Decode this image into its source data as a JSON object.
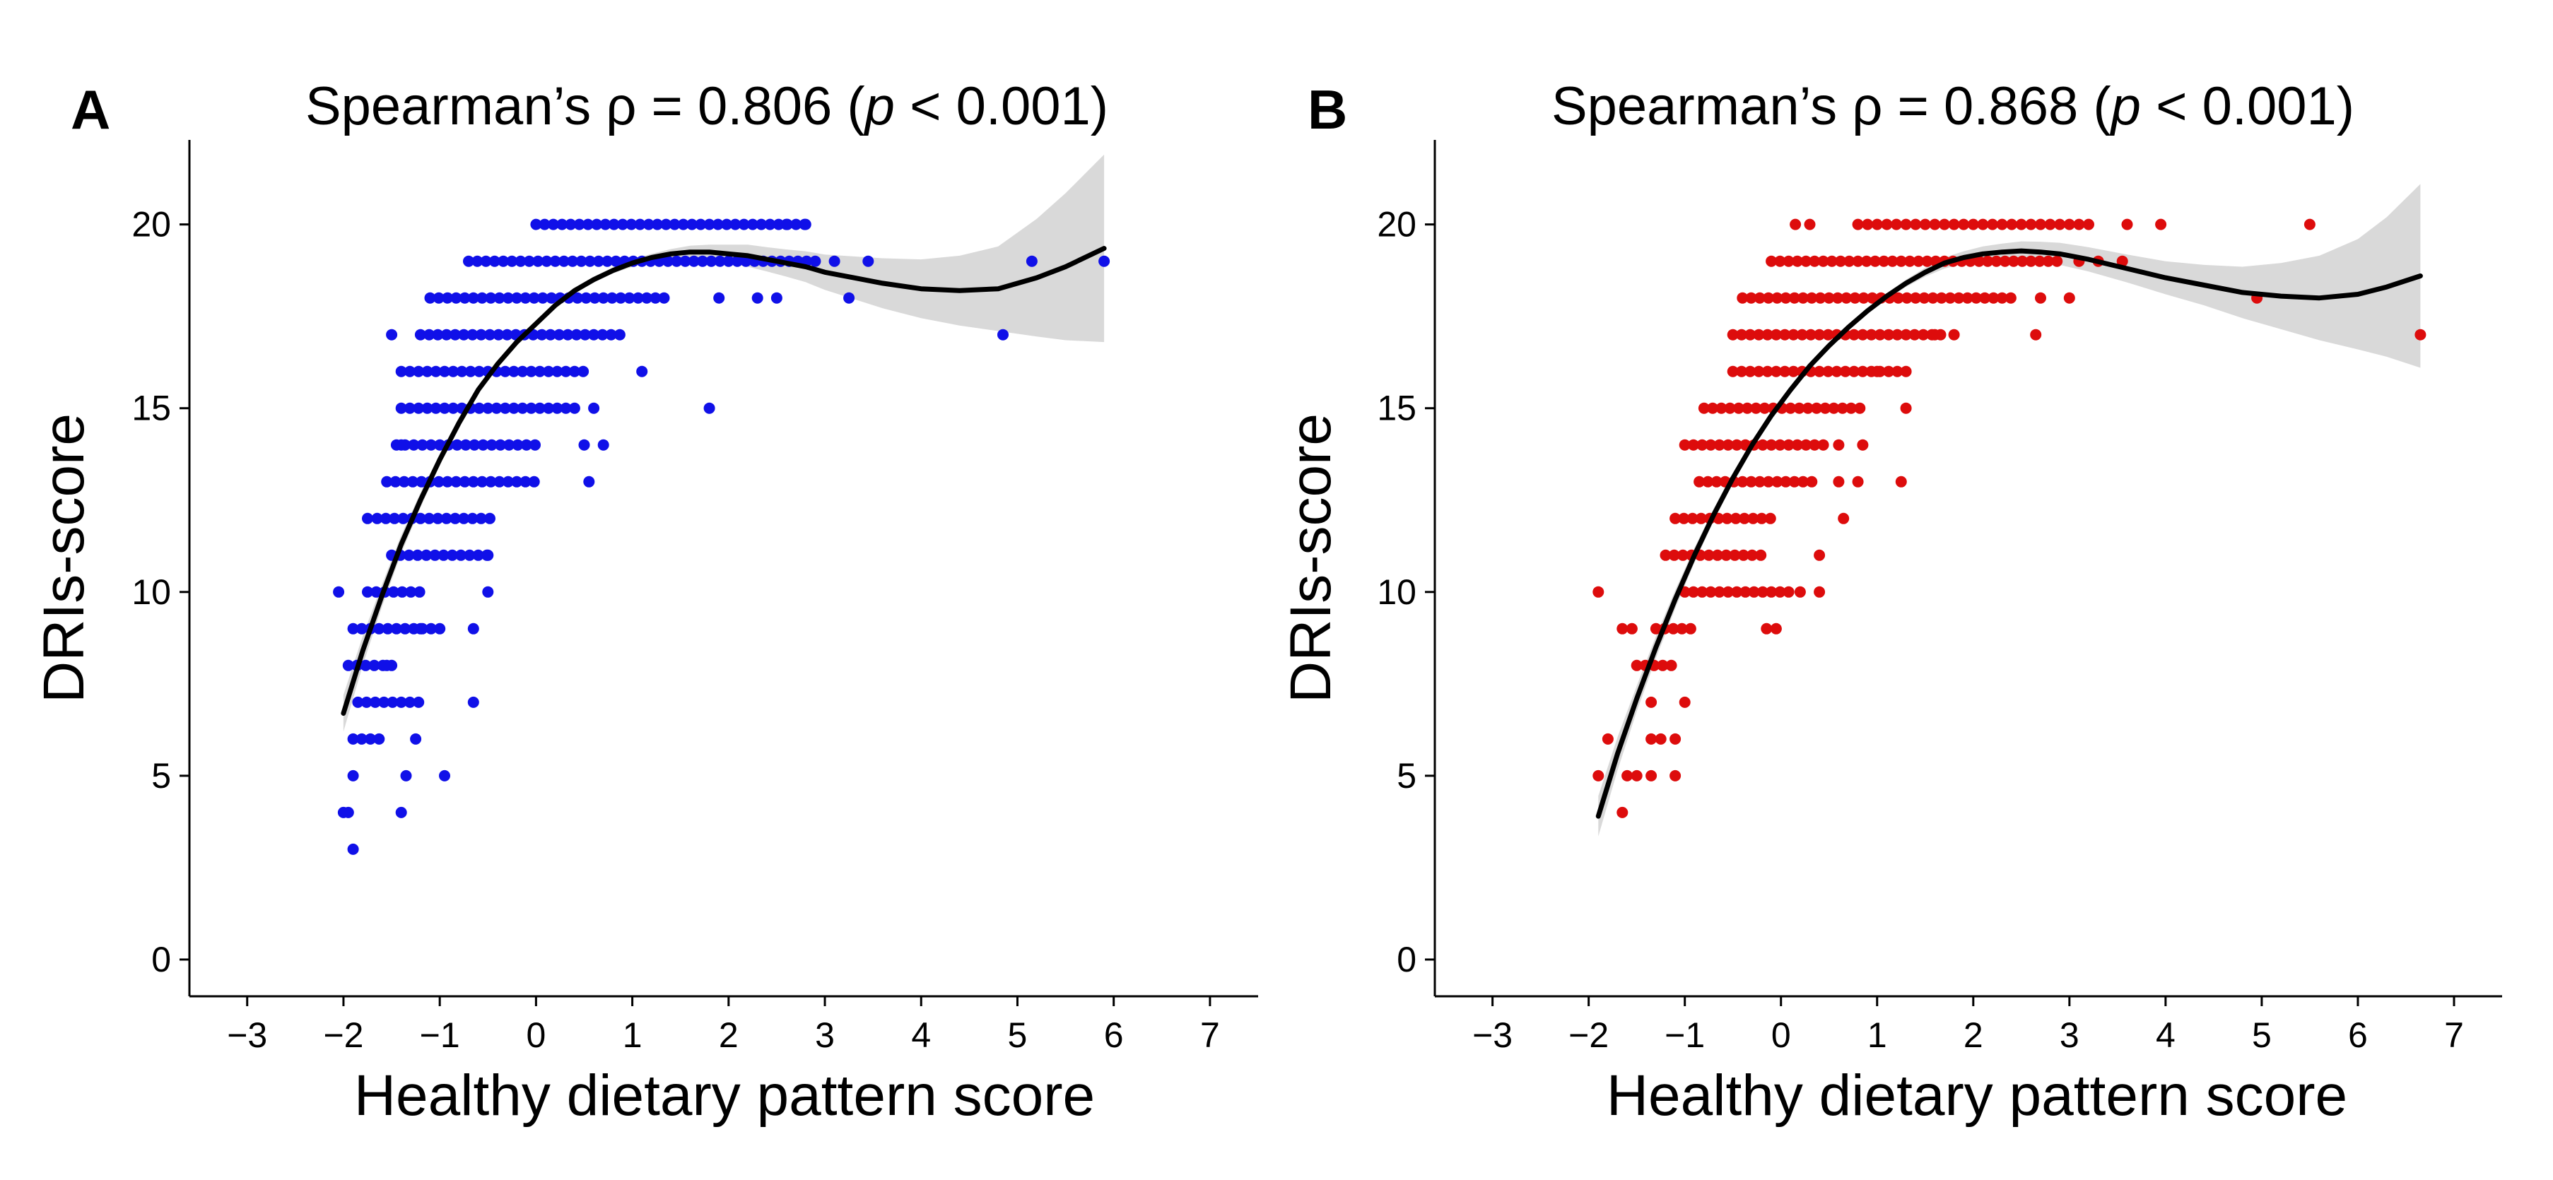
{
  "chart_data": [
    {
      "type": "scatter",
      "panel_label": "A",
      "title_prefix": "Spearman’s ρ = 0.806 (",
      "title_italic": "p",
      "title_suffix": " < 0.001)",
      "xlabel": "Healthy dietary pattern score",
      "ylabel": "DRIs-score",
      "xlim": [
        -3.6,
        7.5
      ],
      "ylim": [
        -1,
        22.3
      ],
      "xticks": [
        -3,
        -2,
        -1,
        0,
        1,
        2,
        3,
        4,
        5,
        6,
        7
      ],
      "xtick_labels": [
        "−3",
        "−2",
        "−1",
        "0",
        "1",
        "2",
        "3",
        "4",
        "5",
        "6",
        "7"
      ],
      "yticks": [
        0,
        5,
        10,
        15,
        20
      ],
      "ytick_labels": [
        "0",
        "5",
        "10",
        "15",
        "20"
      ],
      "point_color": "#1010e8",
      "fit_color": "#000000",
      "band_color": "#d9d9d9",
      "grid": false,
      "legend": "none",
      "point_rows": [
        {
          "y": 20,
          "from": 0.0,
          "to": 2.8,
          "step": 0.09
        },
        {
          "y": 19,
          "from": -0.7,
          "to": 2.9,
          "step": 0.09
        },
        {
          "y": 18,
          "from": -1.1,
          "to": 1.4,
          "step": 0.09
        },
        {
          "y": 17,
          "from": -1.2,
          "to": 0.9,
          "step": 0.09
        },
        {
          "y": 16,
          "from": -1.4,
          "to": 0.5,
          "step": 0.09
        },
        {
          "y": 15,
          "from": -1.4,
          "to": 0.4,
          "step": 0.09
        },
        {
          "y": 14,
          "from": -1.45,
          "to": 0.0,
          "step": 0.09
        },
        {
          "y": 13,
          "from": -1.55,
          "to": 0.0,
          "step": 0.09
        },
        {
          "y": 12,
          "from": -1.65,
          "to": -0.4,
          "step": 0.09
        },
        {
          "y": 11,
          "from": -1.5,
          "to": -0.5,
          "step": 0.09
        },
        {
          "y": 10,
          "from": -1.75,
          "to": -1.2,
          "step": 0.09
        },
        {
          "y": 9,
          "from": -1.9,
          "to": -1.0,
          "step": 0.09
        },
        {
          "y": 8,
          "from": -1.95,
          "to": -1.5,
          "step": 0.09
        },
        {
          "y": 7,
          "from": -1.85,
          "to": -1.2,
          "step": 0.09
        },
        {
          "y": 6,
          "from": -1.9,
          "to": -1.6,
          "step": 0.09
        }
      ],
      "extra_points": [
        [
          -2.05,
          10
        ],
        [
          -1.55,
          8
        ],
        [
          -1.2,
          9
        ],
        [
          -0.65,
          9
        ],
        [
          -0.5,
          10
        ],
        [
          -0.5,
          11
        ],
        [
          -0.65,
          7
        ],
        [
          -1.25,
          6
        ],
        [
          -1.35,
          5
        ],
        [
          -1.9,
          5
        ],
        [
          -0.95,
          5
        ],
        [
          -1.4,
          4
        ],
        [
          -2.0,
          4
        ],
        [
          -1.95,
          4
        ],
        [
          -1.9,
          3
        ],
        [
          -1.5,
          17
        ],
        [
          -1.4,
          14
        ],
        [
          -1.75,
          12
        ],
        [
          0.5,
          14
        ],
        [
          0.55,
          13
        ],
        [
          0.6,
          15
        ],
        [
          0.7,
          14
        ],
        [
          1.1,
          16
        ],
        [
          1.8,
          15
        ],
        [
          1.9,
          18
        ],
        [
          2.3,
          18
        ],
        [
          2.5,
          18
        ],
        [
          3.25,
          18
        ],
        [
          3.1,
          19
        ],
        [
          3.45,
          19
        ],
        [
          4.85,
          17
        ],
        [
          5.15,
          19
        ],
        [
          5.9,
          19
        ],
        [
          2.6,
          20
        ],
        [
          2.8,
          20
        ]
      ],
      "fit_curve": {
        "x": [
          -2.0,
          -1.8,
          -1.6,
          -1.4,
          -1.2,
          -1.0,
          -0.8,
          -0.6,
          -0.4,
          -0.2,
          0.0,
          0.2,
          0.4,
          0.6,
          0.8,
          1.0,
          1.2,
          1.4,
          1.6,
          1.8,
          2.0,
          2.2,
          2.4,
          2.6,
          2.8,
          3.0,
          3.3,
          3.6,
          4.0,
          4.4,
          4.8,
          5.2,
          5.5,
          5.9
        ],
        "y": [
          6.7,
          8.4,
          9.9,
          11.3,
          12.5,
          13.6,
          14.6,
          15.5,
          16.2,
          16.8,
          17.3,
          17.8,
          18.2,
          18.5,
          18.75,
          18.95,
          19.1,
          19.2,
          19.25,
          19.25,
          19.2,
          19.15,
          19.05,
          18.95,
          18.85,
          18.7,
          18.55,
          18.4,
          18.25,
          18.2,
          18.25,
          18.55,
          18.85,
          19.35
        ],
        "lower": [
          6.2,
          8.0,
          9.6,
          11.05,
          12.3,
          13.45,
          14.45,
          15.4,
          16.1,
          16.72,
          17.22,
          17.72,
          18.12,
          18.42,
          18.67,
          18.85,
          19.0,
          19.07,
          19.08,
          19.05,
          18.95,
          18.85,
          18.72,
          18.58,
          18.43,
          18.22,
          17.97,
          17.72,
          17.45,
          17.25,
          17.1,
          16.95,
          16.85,
          16.8
        ],
        "upper": [
          7.2,
          8.8,
          10.2,
          11.55,
          12.7,
          13.75,
          14.75,
          15.6,
          16.3,
          16.88,
          17.38,
          17.88,
          18.28,
          18.58,
          18.83,
          19.05,
          19.2,
          19.33,
          19.42,
          19.45,
          19.45,
          19.45,
          19.38,
          19.32,
          19.27,
          19.18,
          19.13,
          19.08,
          19.05,
          19.15,
          19.4,
          20.15,
          20.85,
          21.9
        ]
      }
    },
    {
      "type": "scatter",
      "panel_label": "B",
      "title_prefix": "Spearman’s ρ = 0.868 (",
      "title_italic": "p",
      "title_suffix": " < 0.001)",
      "xlabel": "Healthy dietary pattern score",
      "ylabel": "DRIs-score",
      "xlim": [
        -3.6,
        7.5
      ],
      "ylim": [
        -1,
        22.3
      ],
      "xticks": [
        -3,
        -2,
        -1,
        0,
        1,
        2,
        3,
        4,
        5,
        6,
        7
      ],
      "xtick_labels": [
        "−3",
        "−2",
        "−1",
        "0",
        "1",
        "2",
        "3",
        "4",
        "5",
        "6",
        "7"
      ],
      "yticks": [
        0,
        5,
        10,
        15,
        20
      ],
      "ytick_labels": [
        "0",
        "5",
        "10",
        "15",
        "20"
      ],
      "point_color": "#dd0c0c",
      "fit_color": "#000000",
      "band_color": "#d9d9d9",
      "grid": false,
      "legend": "none",
      "point_rows": [
        {
          "y": 20,
          "from": 0.8,
          "to": 3.2,
          "step": 0.1
        },
        {
          "y": 19,
          "from": -0.1,
          "to": 2.9,
          "step": 0.09
        },
        {
          "y": 18,
          "from": -0.4,
          "to": 2.4,
          "step": 0.09
        },
        {
          "y": 17,
          "from": -0.5,
          "to": 1.7,
          "step": 0.09
        },
        {
          "y": 16,
          "from": -0.5,
          "to": 1.3,
          "step": 0.09
        },
        {
          "y": 15,
          "from": -0.8,
          "to": 0.9,
          "step": 0.09
        },
        {
          "y": 14,
          "from": -1.0,
          "to": 0.5,
          "step": 0.09
        },
        {
          "y": 13,
          "from": -0.85,
          "to": 0.4,
          "step": 0.09
        },
        {
          "y": 12,
          "from": -1.1,
          "to": -0.1,
          "step": 0.09
        },
        {
          "y": 11,
          "from": -1.2,
          "to": -0.2,
          "step": 0.09
        },
        {
          "y": 10,
          "from": -1.0,
          "to": 0.1,
          "step": 0.09
        },
        {
          "y": 9,
          "from": -1.3,
          "to": -0.9,
          "step": 0.09
        },
        {
          "y": 8,
          "from": -1.5,
          "to": -1.1,
          "step": 0.09
        }
      ],
      "extra_points": [
        [
          -1.9,
          10
        ],
        [
          -1.9,
          5
        ],
        [
          -1.8,
          6
        ],
        [
          -1.6,
          5
        ],
        [
          -1.5,
          5
        ],
        [
          -1.35,
          5
        ],
        [
          -1.1,
          5
        ],
        [
          -1.65,
          4
        ],
        [
          -1.35,
          6
        ],
        [
          -1.25,
          6
        ],
        [
          -1.1,
          6
        ],
        [
          -1.35,
          7
        ],
        [
          -1.0,
          7
        ],
        [
          -1.65,
          9
        ],
        [
          -1.55,
          9
        ],
        [
          -0.15,
          9
        ],
        [
          -0.05,
          9
        ],
        [
          0.4,
          11
        ],
        [
          0.2,
          10
        ],
        [
          0.4,
          10
        ],
        [
          0.65,
          12
        ],
        [
          0.6,
          13
        ],
        [
          0.6,
          14
        ],
        [
          0.85,
          14
        ],
        [
          0.8,
          13
        ],
        [
          1.25,
          13
        ],
        [
          1.3,
          15
        ],
        [
          1.0,
          16
        ],
        [
          1.6,
          17
        ],
        [
          1.8,
          17
        ],
        [
          2.65,
          17
        ],
        [
          2.7,
          18
        ],
        [
          3.0,
          18
        ],
        [
          3.1,
          19
        ],
        [
          3.3,
          19
        ],
        [
          3.55,
          19
        ],
        [
          0.15,
          20
        ],
        [
          0.3,
          20
        ],
        [
          3.6,
          20
        ],
        [
          3.95,
          20
        ],
        [
          4.95,
          18
        ],
        [
          5.5,
          20
        ],
        [
          6.65,
          17
        ]
      ],
      "fit_curve": {
        "x": [
          -1.9,
          -1.7,
          -1.5,
          -1.3,
          -1.1,
          -0.9,
          -0.7,
          -0.5,
          -0.3,
          -0.1,
          0.1,
          0.3,
          0.5,
          0.7,
          0.9,
          1.1,
          1.3,
          1.5,
          1.7,
          1.9,
          2.1,
          2.3,
          2.5,
          2.7,
          2.9,
          3.2,
          3.6,
          4.0,
          4.4,
          4.8,
          5.2,
          5.6,
          6.0,
          6.3,
          6.65
        ],
        "y": [
          3.9,
          5.6,
          7.1,
          8.5,
          9.8,
          11.0,
          12.1,
          13.1,
          14.0,
          14.8,
          15.5,
          16.15,
          16.7,
          17.2,
          17.65,
          18.05,
          18.4,
          18.7,
          18.95,
          19.1,
          19.2,
          19.25,
          19.28,
          19.25,
          19.2,
          19.05,
          18.8,
          18.55,
          18.35,
          18.15,
          18.05,
          18.0,
          18.1,
          18.3,
          18.6
        ],
        "lower": [
          3.35,
          5.15,
          6.75,
          8.2,
          9.55,
          10.8,
          11.93,
          12.95,
          13.88,
          14.7,
          15.42,
          16.07,
          16.63,
          17.13,
          17.58,
          17.97,
          18.3,
          18.58,
          18.8,
          18.93,
          19.0,
          19.02,
          19.02,
          18.97,
          18.9,
          18.72,
          18.42,
          18.1,
          17.8,
          17.45,
          17.15,
          16.85,
          16.6,
          16.4,
          16.1
        ],
        "upper": [
          4.45,
          6.05,
          7.45,
          8.8,
          10.05,
          11.2,
          12.27,
          13.25,
          14.12,
          14.9,
          15.58,
          16.23,
          16.77,
          17.27,
          17.72,
          18.13,
          18.5,
          18.82,
          19.1,
          19.27,
          19.4,
          19.48,
          19.54,
          19.53,
          19.5,
          19.38,
          19.18,
          19.0,
          18.9,
          18.85,
          18.95,
          19.15,
          19.6,
          20.2,
          21.1
        ]
      }
    }
  ]
}
